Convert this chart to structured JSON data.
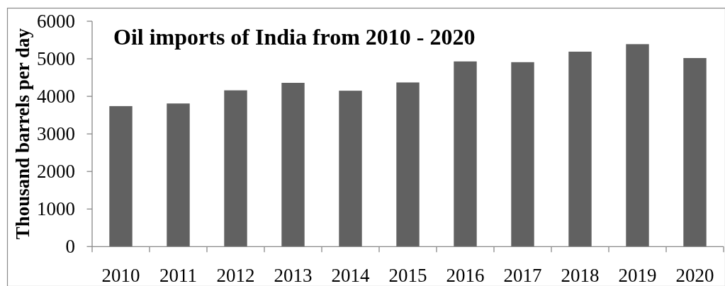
{
  "chart_data": {
    "type": "bar",
    "title": "Oil imports of India from 2010 - 2020",
    "ylabel": "Thousand barrels per day",
    "categories": [
      "2010",
      "2011",
      "2012",
      "2013",
      "2014",
      "2015",
      "2016",
      "2017",
      "2018",
      "2019",
      "2020"
    ],
    "values": [
      3740,
      3810,
      4160,
      4360,
      4150,
      4370,
      4930,
      4910,
      5190,
      5390,
      5020
    ],
    "color": "#616161",
    "ylim": [
      0,
      6000
    ],
    "yticks": [
      0,
      1000,
      2000,
      3000,
      4000,
      5000,
      6000
    ]
  }
}
